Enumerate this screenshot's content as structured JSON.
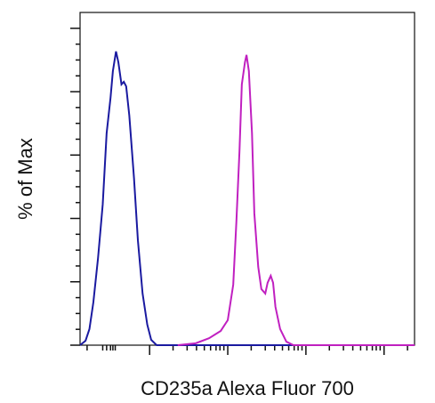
{
  "chart_data": {
    "type": "line",
    "xlabel": "CD235a Alexa Fluor 700",
    "ylabel": "% of Max",
    "xlim": [
      -0.89,
      3.39
    ],
    "ylim": [
      0,
      105
    ],
    "xticks": [
      0,
      1,
      2,
      3
    ],
    "xminorticks": [
      -0.8,
      -0.6,
      -0.55,
      -0.5,
      -0.47,
      -0.44,
      0.3,
      0.48,
      0.6,
      0.7,
      0.78,
      0.85,
      0.9,
      0.95,
      1.3,
      1.48,
      1.6,
      1.7,
      1.78,
      1.85,
      1.9,
      1.95,
      2.3,
      2.48,
      2.6,
      2.7,
      2.78,
      2.85,
      2.9,
      2.95,
      3.3
    ],
    "yticks": [
      0,
      20,
      40,
      60,
      80,
      100
    ],
    "yminorticks": [
      5,
      10,
      15,
      25,
      30,
      35,
      45,
      50,
      55,
      65,
      70,
      75,
      85,
      90,
      95
    ],
    "series": [
      {
        "color": "#1a1aa0",
        "x": [
          -0.89,
          -0.82,
          -0.77,
          -0.72,
          -0.66,
          -0.6,
          -0.55,
          -0.5,
          -0.47,
          -0.43,
          -0.4,
          -0.36,
          -0.33,
          -0.3,
          -0.26,
          -0.2,
          -0.15,
          -0.09,
          -0.03,
          0.02,
          0.09,
          3.39
        ],
        "values": [
          0,
          1.4,
          5.1,
          13.5,
          27.5,
          44.4,
          66.9,
          78.1,
          86.5,
          92.7,
          89.3,
          82.3,
          83.1,
          81.7,
          72.5,
          52.8,
          33.1,
          16.3,
          6.5,
          1.7,
          0,
          0
        ]
      },
      {
        "color": "#c020c0",
        "x": [
          0.36,
          0.59,
          0.76,
          0.91,
          1.0,
          1.07,
          1.11,
          1.15,
          1.18,
          1.22,
          1.24,
          1.27,
          1.31,
          1.34,
          1.39,
          1.43,
          1.48,
          1.51,
          1.55,
          1.58,
          1.61,
          1.67,
          1.75,
          1.84,
          3.39
        ],
        "values": [
          0,
          0.6,
          2.2,
          4.5,
          7.9,
          19.1,
          38.8,
          61.3,
          82.3,
          89.3,
          91.6,
          86.5,
          66.9,
          41.6,
          24.7,
          17.7,
          16.3,
          19.7,
          21.9,
          19.7,
          12.1,
          5.1,
          1.1,
          0,
          0
        ]
      }
    ]
  }
}
